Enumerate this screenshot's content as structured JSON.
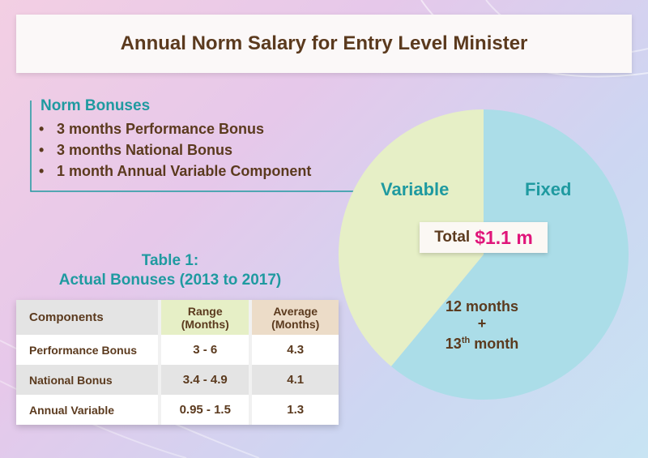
{
  "title": "Annual Norm Salary for Entry Level Minister",
  "norm_bonuses": {
    "heading": "Norm Bonuses",
    "items": [
      "3 months Performance Bonus",
      "3 months National Bonus",
      "1 month Annual Variable Component"
    ],
    "bullet": "•"
  },
  "pie": {
    "total_label": "Total",
    "total_value": "$1.1 m",
    "fixed_desc_line1": "12 months",
    "fixed_desc_plus": "+",
    "fixed_desc_num": "13",
    "fixed_desc_sup": "th",
    "fixed_desc_rest": " month"
  },
  "chart_data": [
    {
      "type": "pie",
      "title": "",
      "slices": [
        {
          "label": "Fixed",
          "value": 61,
          "color": "#abdde8"
        },
        {
          "label": "Variable",
          "value": 39,
          "color": "#e6efc6"
        }
      ]
    },
    {
      "type": "table",
      "title_line1": "Table 1:",
      "title_line2": "Actual Bonuses (2013 to 2017)",
      "columns": [
        {
          "line1": "Components",
          "line2": ""
        },
        {
          "line1": "Range",
          "line2": "(Months)"
        },
        {
          "line1": "Average",
          "line2": "(Months)"
        }
      ],
      "rows": [
        [
          "Performance Bonus",
          "3 - 6",
          "4.3"
        ],
        [
          "National Bonus",
          "3.4 - 4.9",
          "4.1"
        ],
        [
          "Annual Variable",
          "0.95 - 1.5",
          "1.3"
        ]
      ]
    }
  ]
}
